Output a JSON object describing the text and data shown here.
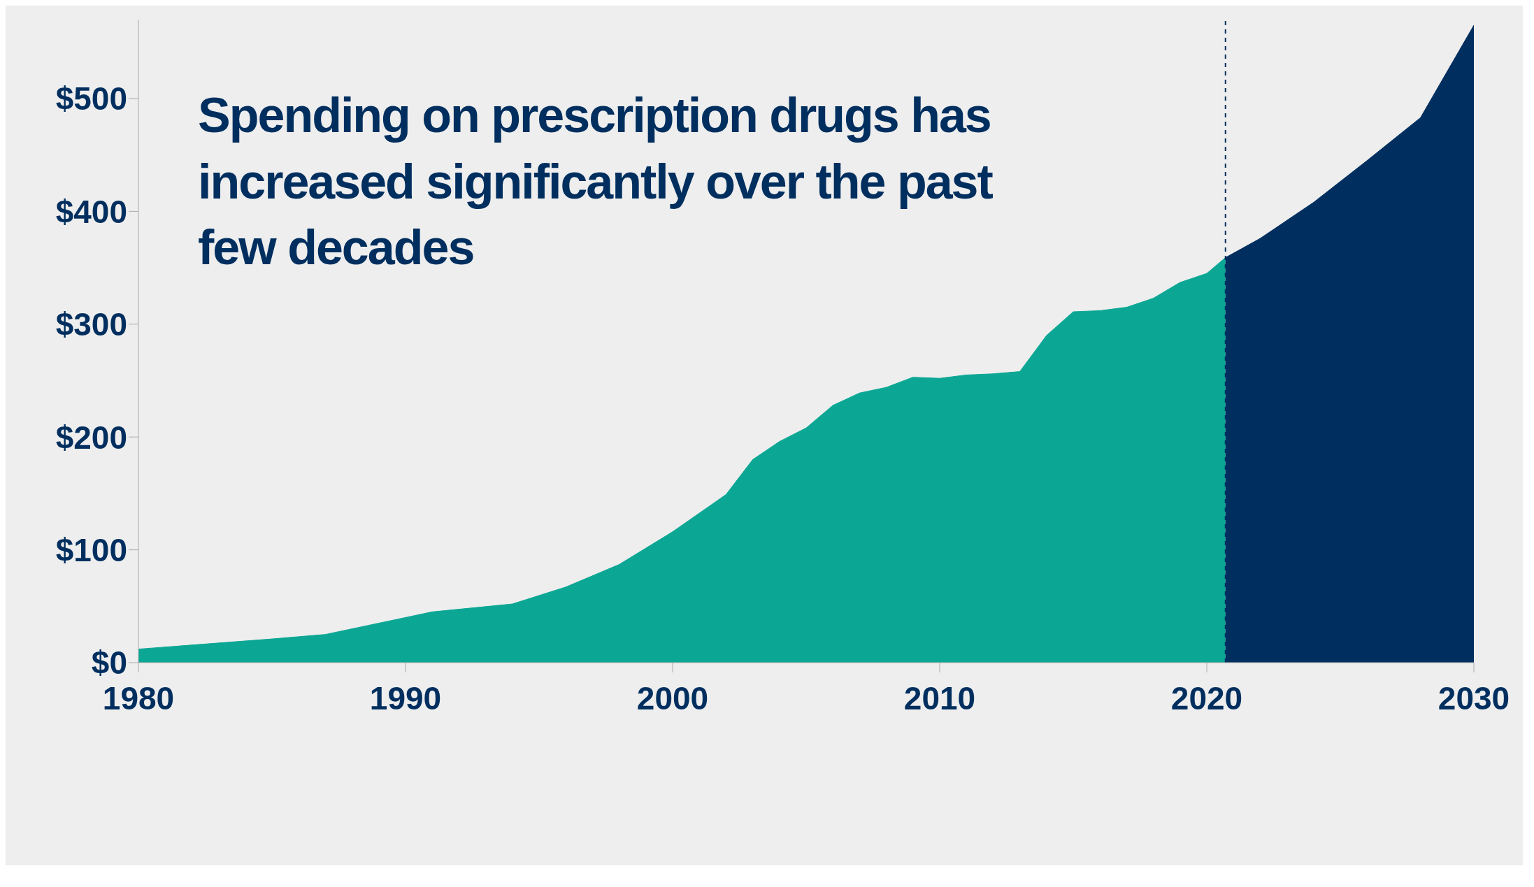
{
  "chart_data": {
    "type": "area",
    "title": "Spending on prescription drugs has increased significantly over the past few decades",
    "series": [
      {
        "color": "#0ba794",
        "x": [
          1980,
          1985,
          1987,
          1990,
          1991,
          1994,
          1996,
          1998,
          2000,
          2002,
          2003,
          2004,
          2005,
          2006,
          2007,
          2008,
          2009,
          2010,
          2011,
          2012,
          2013,
          2014,
          2015,
          2016,
          2017,
          2018,
          2019,
          2020,
          2020.7
        ],
        "values": [
          12,
          21,
          25,
          40,
          45,
          52,
          67,
          87,
          116,
          149,
          180,
          196,
          208,
          228,
          239,
          244,
          253,
          252,
          255,
          256,
          258,
          290,
          311,
          312,
          315,
          323,
          337,
          345,
          359
        ]
      },
      {
        "color": "#002f5f",
        "x": [
          2020.7,
          2022,
          2024,
          2026,
          2028,
          2030
        ],
        "values": [
          359,
          376,
          408,
          445,
          483,
          565
        ]
      }
    ],
    "xlim": [
      1980,
      2030
    ],
    "xticks": [
      1980,
      1990,
      2000,
      2010,
      2020,
      2030
    ],
    "ylim": [
      0,
      570
    ],
    "yticks": [
      {
        "value": 0,
        "label": "$0"
      },
      {
        "value": 100,
        "label": "$100"
      },
      {
        "value": 200,
        "label": "$200"
      },
      {
        "value": 300,
        "label": "$300"
      },
      {
        "value": 400,
        "label": "$400"
      },
      {
        "value": 500,
        "label": "$500"
      }
    ],
    "ref_lines": [
      {
        "axis": "x",
        "value": 2020.7,
        "color": "#002f5f",
        "line_style": "dashed"
      }
    ],
    "legend": false
  }
}
